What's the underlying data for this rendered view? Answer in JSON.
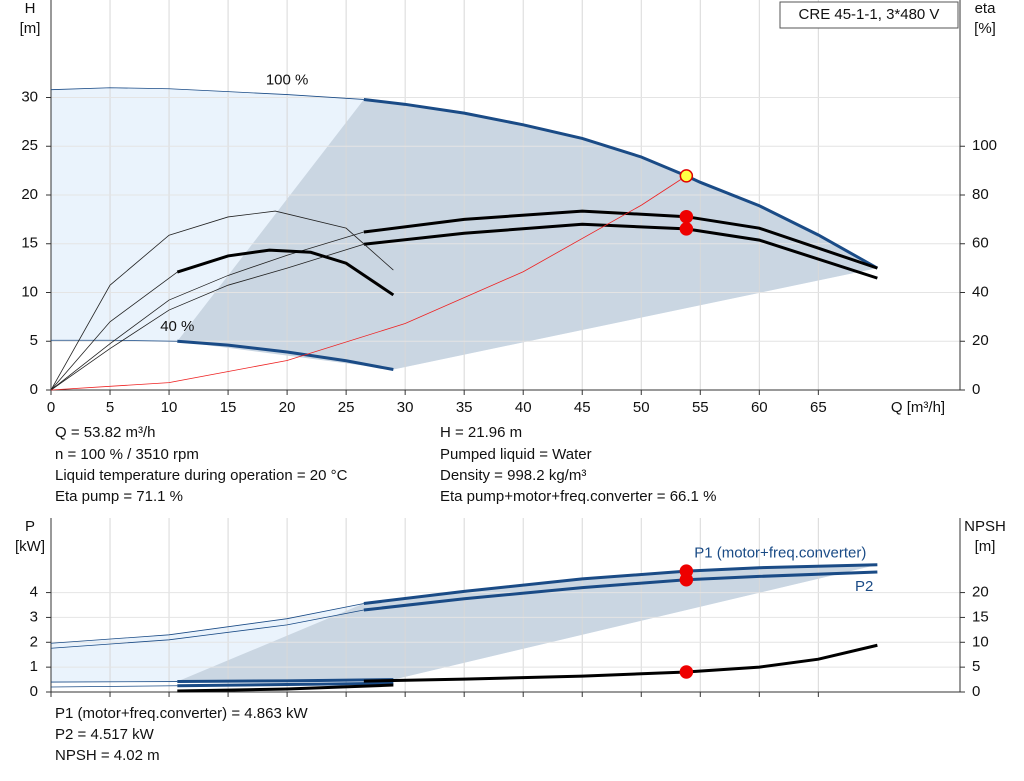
{
  "chart_data": [
    {
      "type": "line",
      "title": "CRE 45-1-1, 3*480 V",
      "xlabel": "Q [m³/h]",
      "ylabel": "H",
      "yunit": "[m]",
      "y2label": "eta",
      "y2unit": "[%]",
      "xlim": [
        0,
        77
      ],
      "xticks": [
        0,
        5,
        10,
        15,
        20,
        25,
        30,
        35,
        40,
        45,
        50,
        55,
        60,
        65
      ],
      "ylim": [
        0,
        40
      ],
      "yticks": [
        0,
        5,
        10,
        15,
        20,
        25,
        30
      ],
      "y2lim": [
        0,
        160
      ],
      "y2ticks": [
        0,
        20,
        40,
        60,
        80,
        100
      ],
      "grid": true,
      "xtick_labels": true,
      "region_colors": [
        "#eaf3fc",
        "#cad6e2"
      ],
      "series": [
        {
          "style": "thin",
          "envelope": "upper",
          "color": "#1a4b86",
          "label": "100 %",
          "x": [
            0,
            5,
            10,
            15,
            20,
            26.5
          ],
          "values": [
            30.8,
            31.0,
            30.9,
            30.6,
            30.3,
            29.8
          ]
        },
        {
          "style": "thick",
          "envelope": "upper",
          "color": "#1a4b86",
          "marker": {
            "index": 6,
            "color": "#ffff44",
            "stroke": "#e00000"
          },
          "x": [
            26.5,
            30,
            35,
            40,
            45,
            50,
            53.82,
            55,
            60,
            65,
            70
          ],
          "values": [
            29.8,
            29.3,
            28.4,
            27.2,
            25.8,
            23.9,
            21.96,
            21.3,
            18.9,
            15.9,
            12.5
          ]
        },
        {
          "style": "thin",
          "envelope": "lower",
          "color": "#1a4b86",
          "label": "40 %",
          "x": [
            0,
            5,
            10.7
          ],
          "values": [
            5.1,
            5.1,
            5.0
          ]
        },
        {
          "style": "thick",
          "envelope": "lower",
          "color": "#1a4b86",
          "x": [
            10.7,
            15,
            20,
            25,
            29
          ],
          "values": [
            5.0,
            4.6,
            3.9,
            3.0,
            2.1
          ]
        },
        {
          "style": "thin",
          "axis": "y2",
          "color": "#222222",
          "x": [
            0,
            5,
            10,
            15,
            20,
            26.5
          ],
          "values": [
            0,
            19,
            36.9,
            47,
            55.3,
            64.8
          ]
        },
        {
          "style": "thick",
          "axis": "y2",
          "color": "#000000",
          "marker": {
            "index": 3,
            "color": "#ee0000",
            "stroke": "#ee0000"
          },
          "x": [
            26.5,
            35,
            45,
            53.82,
            60,
            70
          ],
          "values": [
            64.8,
            70,
            73.4,
            71.1,
            66.4,
            50
          ]
        },
        {
          "style": "thin",
          "axis": "y2",
          "color": "#222222",
          "x": [
            0,
            5,
            10,
            15,
            20,
            26.5
          ],
          "values": [
            0,
            17,
            32.8,
            43,
            50,
            59.8
          ]
        },
        {
          "style": "thick",
          "axis": "y2",
          "color": "#000000",
          "marker": {
            "index": 3,
            "color": "#ee0000",
            "stroke": "#ee0000"
          },
          "x": [
            26.5,
            35,
            45,
            53.82,
            60,
            70
          ],
          "values": [
            59.8,
            64.3,
            68,
            66.1,
            61.5,
            45.9
          ]
        },
        {
          "style": "thin",
          "axis": "y2",
          "color": "#222222",
          "x": [
            0,
            5,
            10,
            15,
            19,
            25,
            29
          ],
          "values": [
            0,
            43,
            63.5,
            71,
            73.4,
            66.4,
            49.2
          ]
        },
        {
          "style": "thin",
          "axis": "y2",
          "color": "#222222",
          "x": [
            0,
            5,
            10.7
          ],
          "values": [
            0,
            28,
            48.4
          ]
        },
        {
          "style": "thick",
          "axis": "y2",
          "color": "#000000",
          "x": [
            10.7,
            15,
            18.5,
            22,
            25,
            29
          ],
          "values": [
            48.4,
            55,
            57.4,
            56.5,
            52,
            39
          ]
        },
        {
          "style": "thin",
          "color": "#ee2222",
          "x": [
            0,
            10,
            20,
            30,
            40,
            50,
            53.82
          ],
          "values": [
            0,
            0.76,
            3.03,
            6.82,
            12.13,
            18.95,
            21.96
          ]
        }
      ]
    },
    {
      "type": "line",
      "ylabel": "P",
      "yunit": "[kW]",
      "y2label": "NPSH",
      "y2unit": "[m]",
      "xlim": [
        0,
        77
      ],
      "xticks": [
        0,
        5,
        10,
        15,
        20,
        25,
        30,
        35,
        40,
        45,
        50,
        55,
        60,
        65
      ],
      "ylim": [
        0,
        7
      ],
      "yticks": [
        0,
        1,
        2,
        3,
        4
      ],
      "y2lim": [
        0,
        35
      ],
      "y2ticks": [
        0,
        5,
        10,
        15,
        20
      ],
      "grid": true,
      "xtick_labels": false,
      "region_colors": [
        "#eaf3fc",
        "#cad6e2"
      ],
      "series": [
        {
          "style": "thin",
          "envelope": "upper",
          "color": "#1a4b86",
          "x": [
            0,
            10,
            20,
            26.5
          ],
          "values": [
            1.96,
            2.3,
            2.95,
            3.56
          ]
        },
        {
          "style": "thick",
          "envelope": "upper",
          "color": "#1a4b86",
          "name": "P1 (motor+freq.converter)",
          "label_pos": "above",
          "marker": {
            "index": 3,
            "color": "#ee0000",
            "stroke": "#ee0000"
          },
          "x": [
            26.5,
            35,
            45,
            53.82,
            60,
            70
          ],
          "values": [
            3.56,
            4.05,
            4.55,
            4.863,
            5.0,
            5.12
          ]
        },
        {
          "style": "thin",
          "color": "#1a4b86",
          "x": [
            0,
            10,
            20,
            26.5
          ],
          "values": [
            1.76,
            2.1,
            2.7,
            3.3
          ]
        },
        {
          "style": "thick",
          "color": "#1a4b86",
          "name": "P2",
          "label_pos": "below",
          "marker": {
            "index": 3,
            "color": "#ee0000",
            "stroke": "#ee0000"
          },
          "x": [
            26.5,
            35,
            45,
            53.82,
            60,
            70
          ],
          "values": [
            3.3,
            3.75,
            4.2,
            4.517,
            4.65,
            4.83
          ]
        },
        {
          "style": "thin",
          "envelope": "lower",
          "color": "#1a4b86",
          "x": [
            0,
            10.7
          ],
          "values": [
            0.4,
            0.42
          ]
        },
        {
          "style": "thick",
          "envelope": "lower",
          "color": "#1a4b86",
          "x": [
            10.7,
            20,
            29
          ],
          "values": [
            0.42,
            0.45,
            0.5
          ]
        },
        {
          "style": "thin",
          "color": "#1a4b86",
          "x": [
            0,
            10.7
          ],
          "values": [
            0.2,
            0.25
          ]
        },
        {
          "style": "thick",
          "color": "#1a4b86",
          "x": [
            10.7,
            20,
            29
          ],
          "values": [
            0.25,
            0.3,
            0.35
          ]
        },
        {
          "style": "thick",
          "axis": "y2",
          "color": "#000000",
          "x": [
            10.7,
            20,
            29
          ],
          "values": [
            0.2,
            0.6,
            1.4
          ]
        },
        {
          "style": "thick",
          "axis": "y2",
          "color": "#000000",
          "marker": {
            "index": 3,
            "color": "#ee0000",
            "stroke": "#ee0000"
          },
          "x": [
            26.5,
            35,
            45,
            53.82,
            60,
            65,
            70
          ],
          "values": [
            2.2,
            2.6,
            3.2,
            4.02,
            5.0,
            6.6,
            9.4
          ]
        }
      ]
    }
  ],
  "info": {
    "left": [
      "Q = 53.82 m³/h",
      "n = 100 % / 3510 rpm",
      "Liquid temperature during operation = 20 °C",
      "Eta pump = 71.1 %"
    ],
    "right": [
      "H = 21.96 m",
      "Pumped liquid = Water",
      "Density = 998.2 kg/m³",
      "Eta pump+motor+freq.converter = 66.1 %"
    ],
    "bottom": [
      "P1 (motor+freq.converter) = 4.863 kW",
      "P2 = 4.517 kW",
      "NPSH = 4.02 m"
    ]
  }
}
